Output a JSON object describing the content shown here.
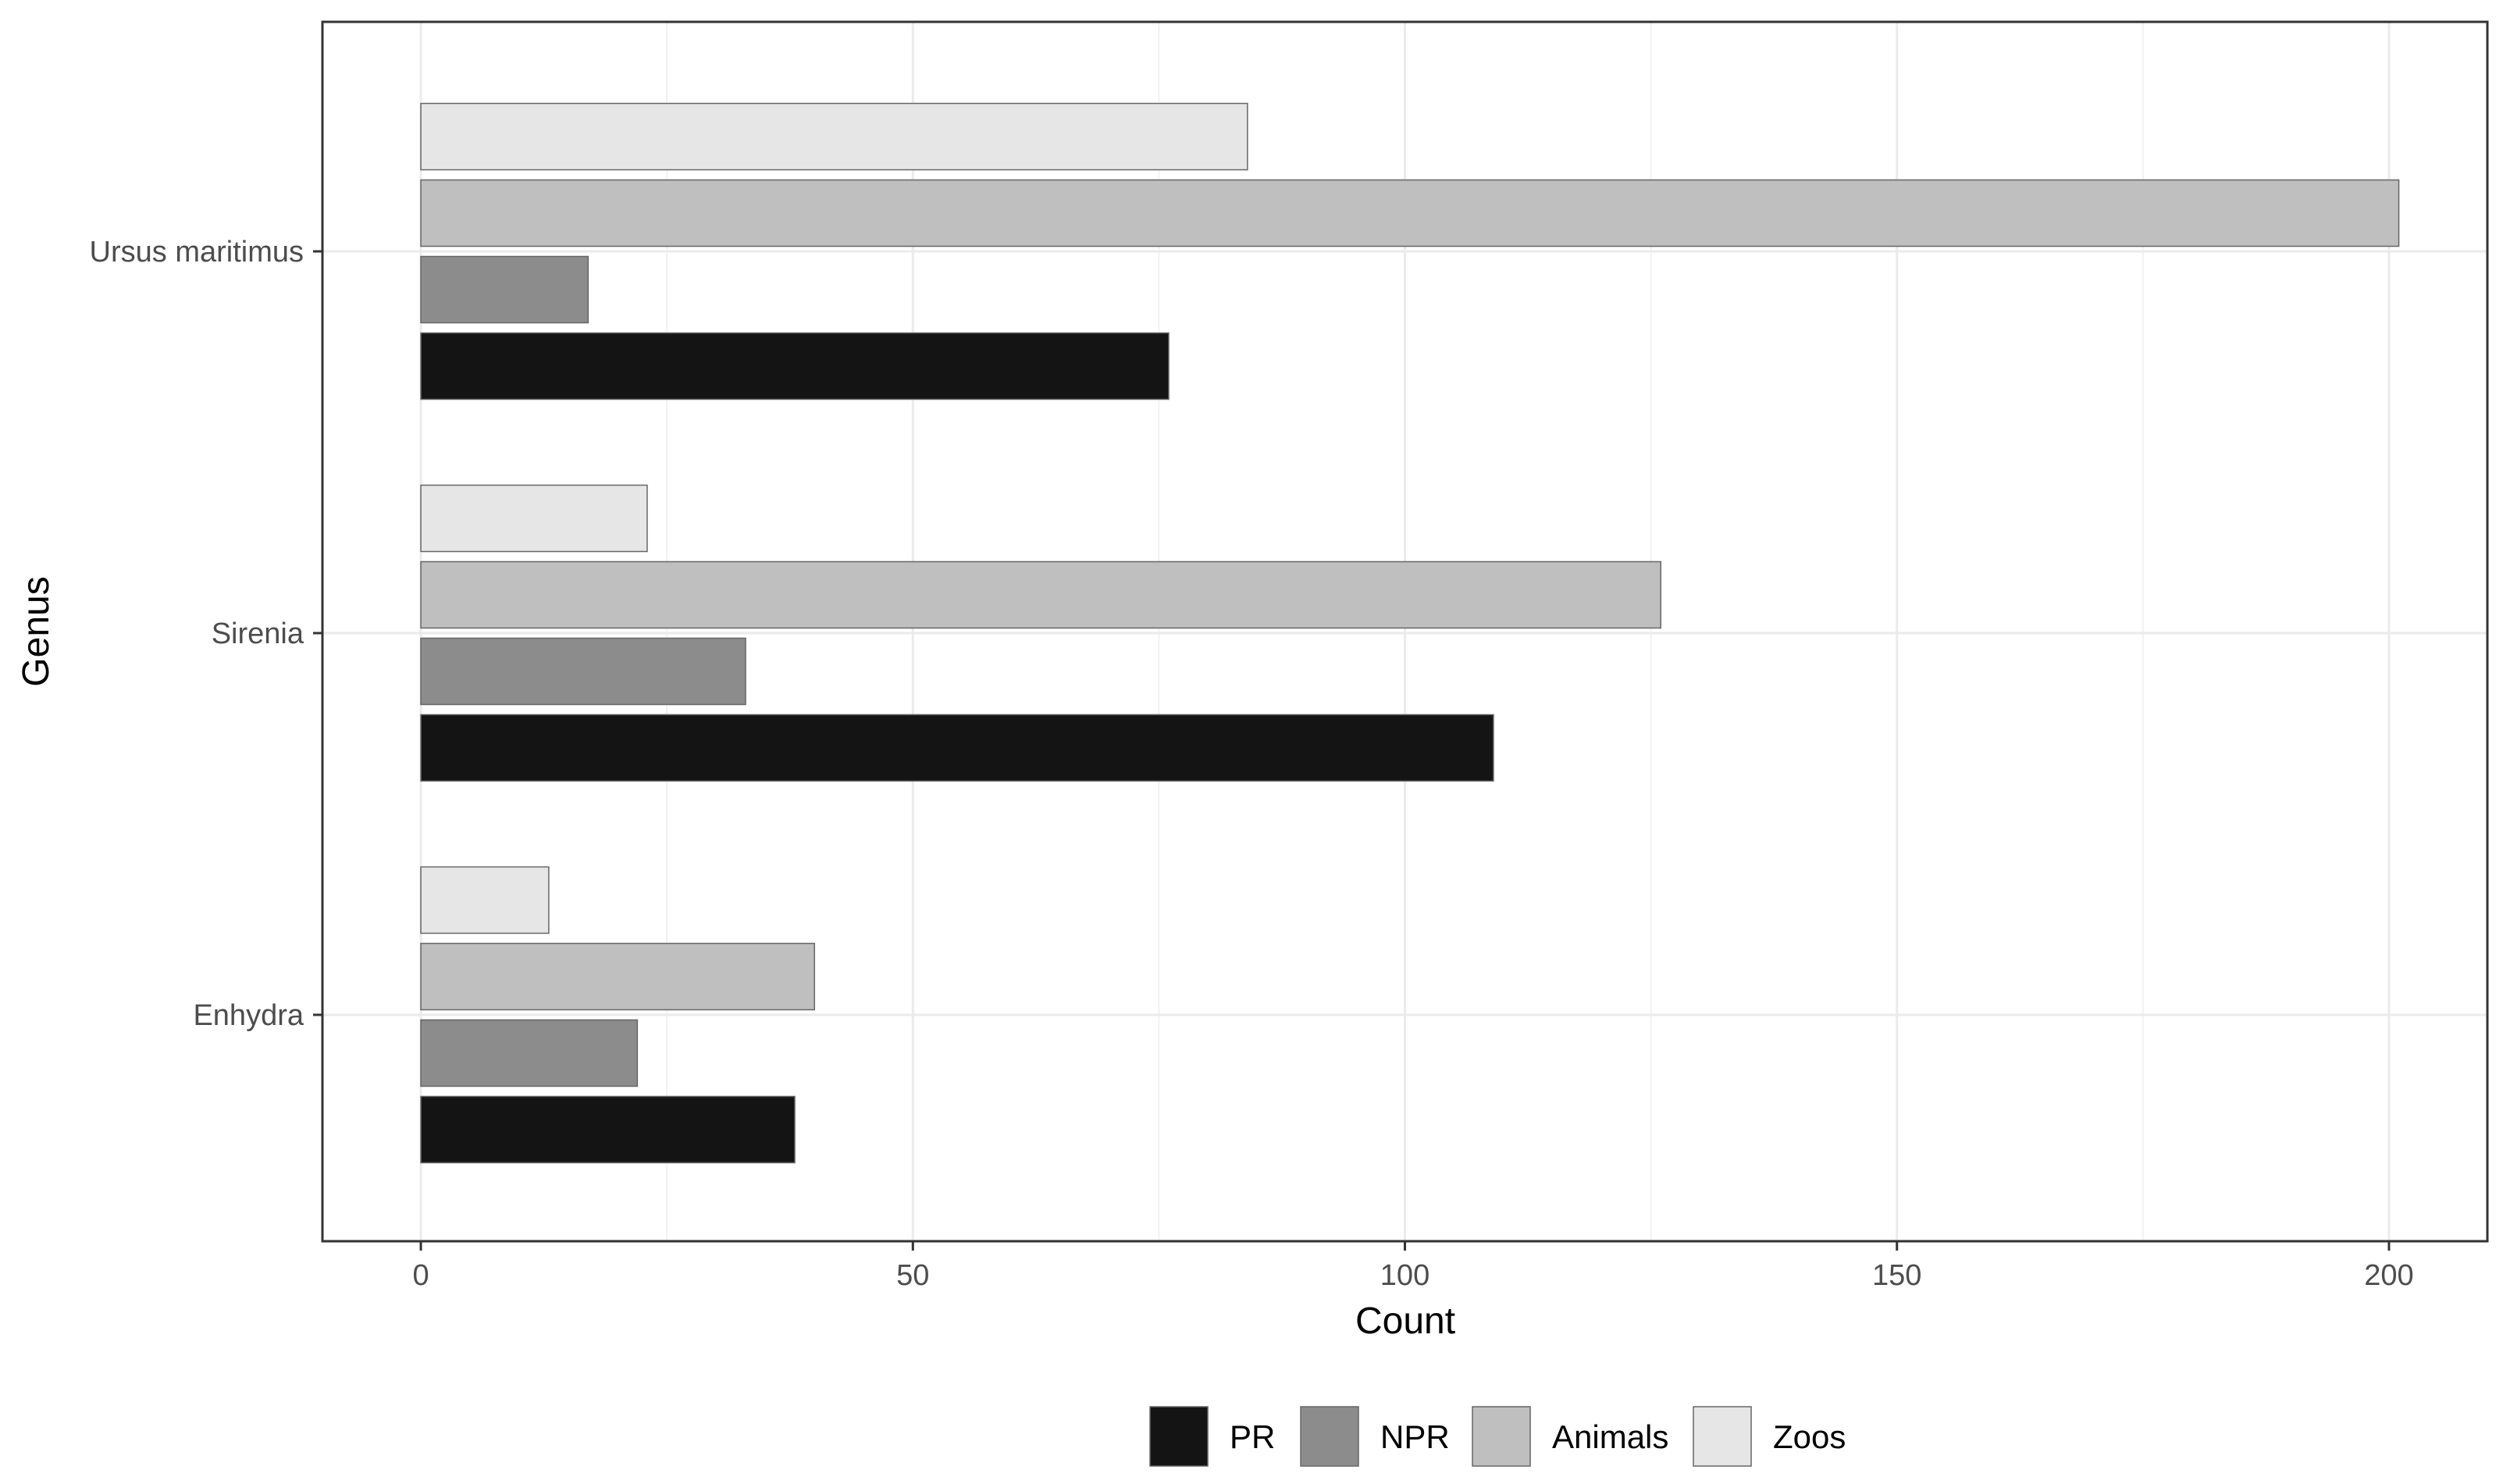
{
  "chart_data": {
    "type": "bar",
    "orientation": "horizontal",
    "categories": [
      "Ursus maritimus",
      "Sirenia",
      "Enhydra"
    ],
    "series": [
      {
        "name": "PR",
        "values": [
          76,
          109,
          38
        ],
        "color": "#141414"
      },
      {
        "name": "NPR",
        "values": [
          17,
          33,
          22
        ],
        "color": "#8c8c8c"
      },
      {
        "name": "Animals",
        "values": [
          201,
          126,
          40
        ],
        "color": "#bfbfbf"
      },
      {
        "name": "Zoos",
        "values": [
          84,
          23,
          13
        ],
        "color": "#e6e6e6"
      }
    ],
    "xlabel": "Count",
    "ylabel": "Genus",
    "xlim": [
      -10,
      210
    ],
    "xticks": [
      0,
      50,
      100,
      150,
      200
    ],
    "grid": true,
    "legend_position": "bottom",
    "title": ""
  }
}
